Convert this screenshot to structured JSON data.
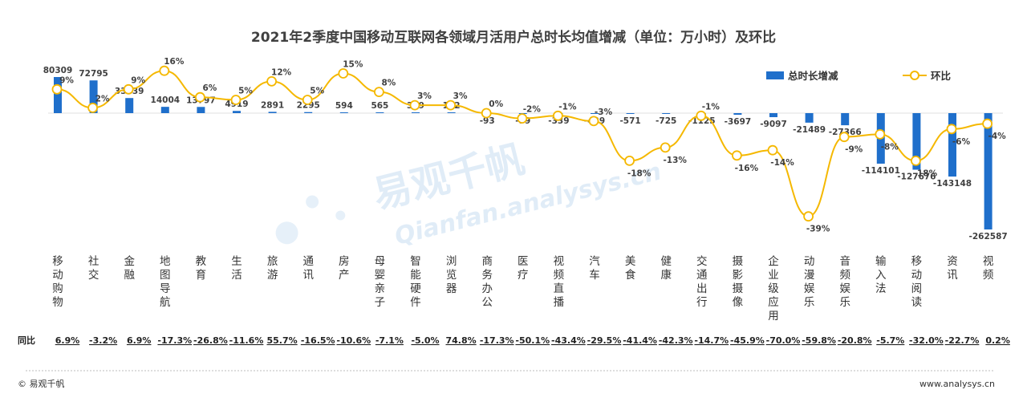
{
  "chart_data": {
    "type": "bar",
    "title": "2021年2季度中国移动互联网各领域月活用户总时长均值增减（单位：万小时）及环比",
    "categories": [
      "移动购物",
      "社交",
      "金融",
      "地图导航",
      "教育",
      "生活",
      "旅游",
      "通讯",
      "房产",
      "母婴亲子",
      "智能硬件",
      "浏览器",
      "商务办公",
      "医疗",
      "视频直播",
      "汽车",
      "美食",
      "健康",
      "交通出行",
      "摄影摄像",
      "企业级应用",
      "动漫娱乐",
      "音频娱乐",
      "输入法",
      "移动阅读",
      "资讯",
      "视频"
    ],
    "series": [
      {
        "name": "总时长增减",
        "type": "bar",
        "color": "#1f6fcb",
        "values": [
          80309,
          72795,
          33539,
          14004,
          13797,
          4919,
          2891,
          2295,
          594,
          565,
          349,
          192,
          -93,
          -99,
          -339,
          -439,
          -571,
          -725,
          -1125,
          -3697,
          -9097,
          -21489,
          -27366,
          -114101,
          -127676,
          -143148,
          -262587
        ],
        "labels": [
          "80309",
          "72795",
          "33539",
          "14004",
          "13797",
          "4919",
          "2891",
          "2295",
          "594",
          "565",
          "349",
          "192",
          "-93",
          "-99",
          "-339",
          "-439",
          "-571",
          "-725",
          "-1125",
          "-3697",
          "-9097",
          "-21489",
          "-27366",
          "-114101",
          "-127676",
          "-143148",
          "-262587"
        ]
      },
      {
        "name": "环比",
        "type": "line",
        "color": "#f5b800",
        "values": [
          9,
          2,
          9,
          16,
          6,
          5,
          12,
          5,
          15,
          8,
          3,
          3,
          0,
          -2,
          -1,
          -3,
          -18,
          -13,
          -1,
          -16,
          -14,
          -39,
          -9,
          -8,
          -18,
          -6,
          -4
        ],
        "labels": [
          "9%",
          "2%",
          "9%",
          "16%",
          "6%",
          "5%",
          "12%",
          "5%",
          "15%",
          "8%",
          "3%",
          "3%",
          "0%",
          "-2%",
          "-1%",
          "-3%",
          "-18%",
          "-13%",
          "-1%",
          "-16%",
          "-14%",
          "-39%",
          "-9%",
          "-8%",
          "-18%",
          "-6%",
          "-4%"
        ]
      }
    ],
    "yoy_label": "同比",
    "yoy": [
      "6.9%",
      "-3.2%",
      "6.9%",
      "-17.3%",
      "-26.8%",
      "-11.6%",
      "55.7%",
      "-16.5%",
      "-10.6%",
      "-7.1%",
      "-5.0%",
      "74.8%",
      "-17.3%",
      "-50.1%",
      "-43.4%",
      "-29.5%",
      "-41.4%",
      "-42.3%",
      "-14.7%",
      "-45.9%",
      "-70.0%",
      "-59.8%",
      "-20.8%",
      "-5.7%",
      "-32.0%",
      "-22.7%",
      "0.2%"
    ],
    "legend_position": "top-right",
    "grid": false
  },
  "watermark": {
    "cn": "易观千帆",
    "en": "Qianfan.analysys.cn"
  },
  "footer": {
    "left": "© 易观千帆",
    "right": "www.analysys.cn"
  }
}
